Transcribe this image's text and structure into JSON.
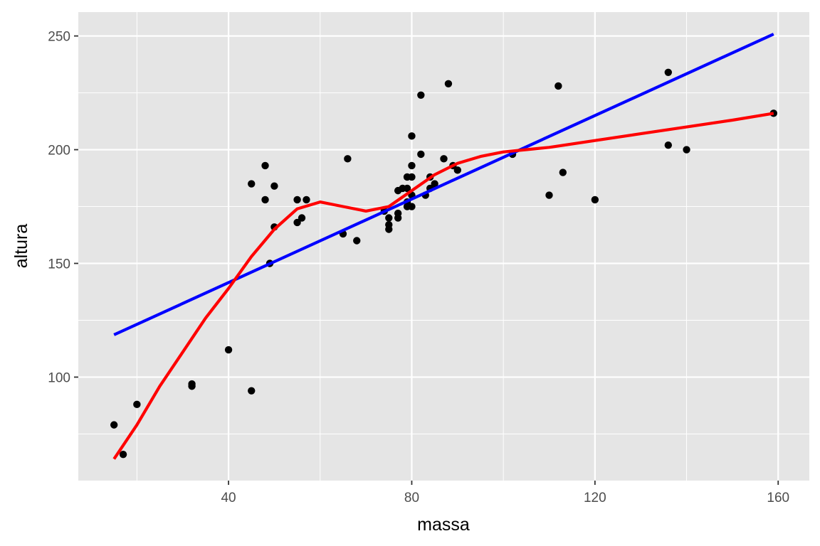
{
  "chart_data": {
    "type": "scatter",
    "title": "",
    "xlabel": "massa",
    "ylabel": "altura",
    "xlim": [
      7.2,
      166.8
    ],
    "ylim": [
      54.5,
      260.5
    ],
    "x_ticks": [
      40,
      80,
      120,
      160
    ],
    "y_ticks": [
      100,
      150,
      200,
      250
    ],
    "grid": true,
    "legend": "none",
    "colors": {
      "panel": "#e5e5e5",
      "grid": "#ffffff",
      "points": "#000000",
      "linear_fit": "#0000ff",
      "smooth_fit": "#ff0000",
      "tick_text": "#4d4d4d"
    },
    "points": [
      {
        "x": 15,
        "y": 79
      },
      {
        "x": 17,
        "y": 66
      },
      {
        "x": 20,
        "y": 88
      },
      {
        "x": 32,
        "y": 97
      },
      {
        "x": 32,
        "y": 96
      },
      {
        "x": 40,
        "y": 112
      },
      {
        "x": 45,
        "y": 185
      },
      {
        "x": 45,
        "y": 94
      },
      {
        "x": 48,
        "y": 193
      },
      {
        "x": 48,
        "y": 178
      },
      {
        "x": 49,
        "y": 150
      },
      {
        "x": 50,
        "y": 184
      },
      {
        "x": 50,
        "y": 166
      },
      {
        "x": 55,
        "y": 178
      },
      {
        "x": 55,
        "y": 168
      },
      {
        "x": 56,
        "y": 170
      },
      {
        "x": 57,
        "y": 178
      },
      {
        "x": 65,
        "y": 163
      },
      {
        "x": 66,
        "y": 196
      },
      {
        "x": 68,
        "y": 160
      },
      {
        "x": 74,
        "y": 173
      },
      {
        "x": 75,
        "y": 170
      },
      {
        "x": 75,
        "y": 167
      },
      {
        "x": 75,
        "y": 165
      },
      {
        "x": 77,
        "y": 182
      },
      {
        "x": 77,
        "y": 172
      },
      {
        "x": 77,
        "y": 170
      },
      {
        "x": 78,
        "y": 183
      },
      {
        "x": 79,
        "y": 188
      },
      {
        "x": 79,
        "y": 183
      },
      {
        "x": 79,
        "y": 177
      },
      {
        "x": 79,
        "y": 175
      },
      {
        "x": 80,
        "y": 206
      },
      {
        "x": 80,
        "y": 193
      },
      {
        "x": 80,
        "y": 188
      },
      {
        "x": 80,
        "y": 180
      },
      {
        "x": 80,
        "y": 175
      },
      {
        "x": 82,
        "y": 224
      },
      {
        "x": 82,
        "y": 198
      },
      {
        "x": 83,
        "y": 180
      },
      {
        "x": 84,
        "y": 188
      },
      {
        "x": 84,
        "y": 183
      },
      {
        "x": 85,
        "y": 185
      },
      {
        "x": 87,
        "y": 196
      },
      {
        "x": 88,
        "y": 229
      },
      {
        "x": 89,
        "y": 193
      },
      {
        "x": 90,
        "y": 191
      },
      {
        "x": 102,
        "y": 198
      },
      {
        "x": 110,
        "y": 180
      },
      {
        "x": 112,
        "y": 228
      },
      {
        "x": 113,
        "y": 190
      },
      {
        "x": 120,
        "y": 178
      },
      {
        "x": 136,
        "y": 234
      },
      {
        "x": 136,
        "y": 202
      },
      {
        "x": 140,
        "y": 200
      },
      {
        "x": 159,
        "y": 216
      }
    ],
    "series": [
      {
        "type": "line",
        "color": "#0000ff",
        "x": [
          15,
          159
        ],
        "y": [
          118.6,
          250.8
        ]
      },
      {
        "type": "line",
        "color": "#ff0000",
        "x": [
          15,
          20,
          25,
          30,
          35,
          40,
          45,
          50,
          55,
          60,
          65,
          70,
          75,
          80,
          85,
          90,
          95,
          100,
          105,
          110,
          120,
          130,
          140,
          150,
          159
        ],
        "y": [
          64,
          79,
          96,
          111,
          126,
          139,
          153,
          165,
          174,
          177,
          175,
          173,
          175,
          182,
          189,
          194,
          197,
          199,
          200,
          201,
          204,
          207,
          210,
          213,
          216
        ]
      }
    ]
  }
}
